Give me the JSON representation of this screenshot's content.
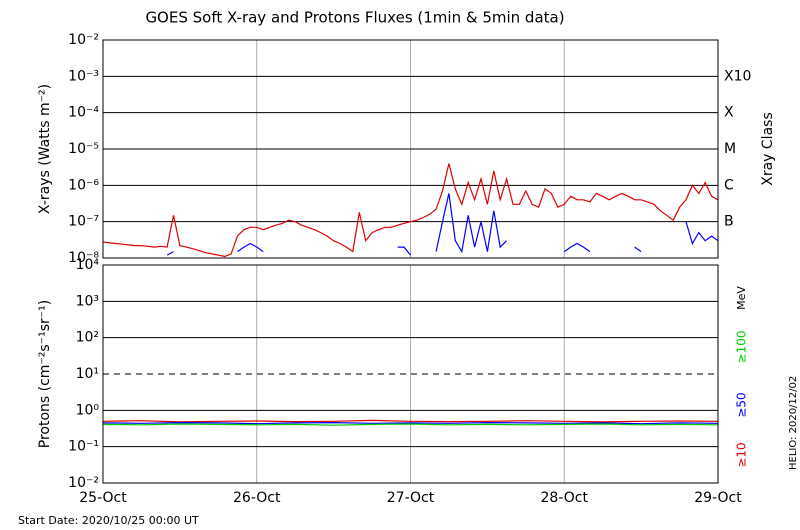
{
  "title": "GOES Soft X-ray and Protons Fluxes   (1min & 5min data)",
  "start_date": "Start Date: 2020/10/25 00:00 UT",
  "credit": "HELIO: 2020/12/02",
  "chart_data": [
    {
      "type": "line",
      "yscale": "log",
      "ylabel": "X-rays (Watts m⁻²)",
      "xlim": [
        "2020-10-25T00:00",
        "2020-10-29T00:00"
      ],
      "ylim": [
        1e-08,
        0.01
      ],
      "yticks": [
        {
          "value": 1e-08,
          "label": "10⁻⁸"
        },
        {
          "value": 1e-07,
          "label": "10⁻⁷"
        },
        {
          "value": 1e-06,
          "label": "10⁻⁶"
        },
        {
          "value": 1e-05,
          "label": "10⁻⁵"
        },
        {
          "value": 0.0001,
          "label": "10⁻⁴"
        },
        {
          "value": 0.001,
          "label": "10⁻³"
        },
        {
          "value": 0.01,
          "label": "10⁻²"
        }
      ],
      "y2label": "Xray Class",
      "y2lim": [
        1e-08,
        0.01
      ],
      "y2ticks": [
        {
          "value": 1e-07,
          "label": "B"
        },
        {
          "value": 1e-06,
          "label": "C"
        },
        {
          "value": 1e-05,
          "label": "M"
        },
        {
          "value": 0.0001,
          "label": "X"
        },
        {
          "value": 0.001,
          "label": "X10"
        }
      ],
      "grid": true,
      "x": [
        "2020-10-25T00:00",
        "2020-10-25T01:00",
        "2020-10-25T02:00",
        "2020-10-25T03:00",
        "2020-10-25T04:00",
        "2020-10-25T05:00",
        "2020-10-25T06:00",
        "2020-10-25T07:00",
        "2020-10-25T08:00",
        "2020-10-25T09:00",
        "2020-10-25T10:00",
        "2020-10-25T11:00",
        "2020-10-25T12:00",
        "2020-10-25T13:00",
        "2020-10-25T14:00",
        "2020-10-25T15:00",
        "2020-10-25T16:00",
        "2020-10-25T17:00",
        "2020-10-25T18:00",
        "2020-10-25T19:00",
        "2020-10-25T20:00",
        "2020-10-25T21:00",
        "2020-10-25T22:00",
        "2020-10-25T23:00",
        "2020-10-26T00:00",
        "2020-10-26T01:00",
        "2020-10-26T02:00",
        "2020-10-26T03:00",
        "2020-10-26T04:00",
        "2020-10-26T05:00",
        "2020-10-26T06:00",
        "2020-10-26T07:00",
        "2020-10-26T08:00",
        "2020-10-26T09:00",
        "2020-10-26T10:00",
        "2020-10-26T11:00",
        "2020-10-26T12:00",
        "2020-10-26T13:00",
        "2020-10-26T14:00",
        "2020-10-26T15:00",
        "2020-10-26T16:00",
        "2020-10-26T17:00",
        "2020-10-26T18:00",
        "2020-10-26T19:00",
        "2020-10-26T20:00",
        "2020-10-26T21:00",
        "2020-10-26T22:00",
        "2020-10-26T23:00",
        "2020-10-27T00:00",
        "2020-10-27T01:00",
        "2020-10-27T02:00",
        "2020-10-27T03:00",
        "2020-10-27T04:00",
        "2020-10-27T05:00",
        "2020-10-27T06:00",
        "2020-10-27T07:00",
        "2020-10-27T08:00",
        "2020-10-27T09:00",
        "2020-10-27T10:00",
        "2020-10-27T11:00",
        "2020-10-27T12:00",
        "2020-10-27T13:00",
        "2020-10-27T14:00",
        "2020-10-27T15:00",
        "2020-10-27T16:00",
        "2020-10-27T17:00",
        "2020-10-27T18:00",
        "2020-10-27T19:00",
        "2020-10-27T20:00",
        "2020-10-27T21:00",
        "2020-10-27T22:00",
        "2020-10-27T23:00",
        "2020-10-28T00:00",
        "2020-10-28T01:00",
        "2020-10-28T02:00",
        "2020-10-28T03:00",
        "2020-10-28T04:00",
        "2020-10-28T05:00",
        "2020-10-28T06:00",
        "2020-10-28T07:00",
        "2020-10-28T08:00",
        "2020-10-28T09:00",
        "2020-10-28T10:00",
        "2020-10-28T11:00",
        "2020-10-28T12:00",
        "2020-10-28T13:00",
        "2020-10-28T14:00",
        "2020-10-28T15:00",
        "2020-10-28T16:00",
        "2020-10-28T17:00",
        "2020-10-28T18:00",
        "2020-10-28T19:00",
        "2020-10-28T20:00",
        "2020-10-28T21:00",
        "2020-10-28T22:00",
        "2020-10-28T23:00",
        "2020-10-29T00:00"
      ],
      "series": [
        {
          "color": "#e00000",
          "values": [
            2.8e-08,
            2.6e-08,
            2.5e-08,
            2.4e-08,
            2.3e-08,
            2.2e-08,
            2.2e-08,
            2.1e-08,
            2e-08,
            2.1e-08,
            2e-08,
            1.5e-07,
            2.2e-08,
            2e-08,
            1.8e-08,
            1.6e-08,
            1.4e-08,
            1.3e-08,
            1.2e-08,
            1.1e-08,
            1.3e-08,
            4e-08,
            6e-08,
            7e-08,
            7e-08,
            6e-08,
            7e-08,
            8e-08,
            9e-08,
            1.1e-07,
            1e-07,
            8e-08,
            7e-08,
            6e-08,
            5e-08,
            4e-08,
            3e-08,
            2.5e-08,
            2e-08,
            1.5e-08,
            1.8e-07,
            3e-08,
            5e-08,
            6e-08,
            7e-08,
            7e-08,
            8e-08,
            9e-08,
            1e-07,
            1.1e-07,
            1.3e-07,
            1.6e-07,
            2.2e-07,
            7e-07,
            4e-06,
            8e-07,
            3e-07,
            1.2e-06,
            4e-07,
            1.5e-06,
            3e-07,
            2.5e-06,
            4e-07,
            1.5e-06,
            3e-07,
            3e-07,
            7e-07,
            3e-07,
            2.5e-07,
            8e-07,
            6e-07,
            2.5e-07,
            3e-07,
            5e-07,
            4e-07,
            4e-07,
            3.5e-07,
            6e-07,
            5e-07,
            4e-07,
            5e-07,
            6e-07,
            5e-07,
            4e-07,
            4e-07,
            3.5e-07,
            3e-07,
            2e-07,
            1.5e-07,
            1.1e-07,
            2.5e-07,
            4e-07,
            1e-06,
            6e-07,
            1.2e-06,
            5e-07,
            4e-07
          ]
        },
        {
          "color": "#0000ff",
          "values": [
            null,
            null,
            null,
            null,
            null,
            null,
            null,
            null,
            null,
            null,
            1.2e-08,
            1.5e-08,
            null,
            null,
            null,
            null,
            null,
            null,
            null,
            null,
            null,
            1.5e-08,
            2e-08,
            2.5e-08,
            2e-08,
            1.5e-08,
            null,
            null,
            null,
            null,
            1.1e-08,
            null,
            null,
            null,
            1.2e-08,
            null,
            null,
            null,
            null,
            null,
            null,
            null,
            null,
            null,
            null,
            null,
            2e-08,
            2e-08,
            1.2e-08,
            null,
            null,
            null,
            1.5e-08,
            1e-07,
            6e-07,
            3e-08,
            1.5e-08,
            1.5e-07,
            2e-08,
            1e-07,
            1.5e-08,
            2e-07,
            2e-08,
            3e-08,
            null,
            null,
            null,
            null,
            null,
            null,
            null,
            null,
            1.5e-08,
            2e-08,
            2.5e-08,
            2e-08,
            1.5e-08,
            null,
            null,
            null,
            null,
            null,
            null,
            2e-08,
            1.5e-08,
            null,
            null,
            null,
            null,
            null,
            null,
            1e-07,
            2.5e-08,
            5e-08,
            3e-08,
            4e-08,
            3e-08
          ]
        }
      ]
    },
    {
      "type": "line",
      "yscale": "log",
      "ylabel": "Protons (cm⁻²s⁻¹sr⁻¹)",
      "xlim": [
        "2020-10-25T00:00",
        "2020-10-29T00:00"
      ],
      "xticks": [
        {
          "value": "2020-10-25T00:00",
          "label": "25-Oct"
        },
        {
          "value": "2020-10-26T00:00",
          "label": "26-Oct"
        },
        {
          "value": "2020-10-27T00:00",
          "label": "27-Oct"
        },
        {
          "value": "2020-10-28T00:00",
          "label": "28-Oct"
        },
        {
          "value": "2020-10-29T00:00",
          "label": "29-Oct"
        }
      ],
      "ylim": [
        0.01,
        10000
      ],
      "yticks": [
        {
          "value": 0.01,
          "label": "10⁻²"
        },
        {
          "value": 0.1,
          "label": "10⁻¹"
        },
        {
          "value": 1,
          "label": "10⁰"
        },
        {
          "value": 10,
          "label": "10¹"
        },
        {
          "value": 100,
          "label": "10²"
        },
        {
          "value": 1000,
          "label": "10³"
        },
        {
          "value": 10000,
          "label": "10⁴"
        }
      ],
      "threshold": 10,
      "grid": true,
      "legend_unit": "MeV",
      "x": [
        "2020-10-25T00:00",
        "2020-10-25T06:00",
        "2020-10-25T12:00",
        "2020-10-25T18:00",
        "2020-10-26T00:00",
        "2020-10-26T06:00",
        "2020-10-26T12:00",
        "2020-10-26T18:00",
        "2020-10-27T00:00",
        "2020-10-27T06:00",
        "2020-10-27T12:00",
        "2020-10-27T18:00",
        "2020-10-28T00:00",
        "2020-10-28T06:00",
        "2020-10-28T12:00",
        "2020-10-28T18:00",
        "2020-10-29T00:00"
      ],
      "series": [
        {
          "name": "≥10",
          "color": "#e00000",
          "values": [
            0.5,
            0.52,
            0.48,
            0.5,
            0.51,
            0.49,
            0.5,
            0.53,
            0.5,
            0.49,
            0.5,
            0.52,
            0.5,
            0.48,
            0.5,
            0.51,
            0.5
          ]
        },
        {
          "name": "≥50",
          "color": "#0000ff",
          "values": [
            0.45,
            0.44,
            0.46,
            0.45,
            0.43,
            0.45,
            0.46,
            0.44,
            0.45,
            0.44,
            0.46,
            0.45,
            0.44,
            0.45,
            0.43,
            0.45,
            0.44
          ]
        },
        {
          "name": "≥100",
          "color": "#00cc00",
          "values": [
            0.41,
            0.4,
            0.42,
            0.41,
            0.4,
            0.41,
            0.39,
            0.41,
            0.42,
            0.4,
            0.41,
            0.4,
            0.41,
            0.42,
            0.4,
            0.41,
            0.4
          ]
        }
      ]
    }
  ]
}
